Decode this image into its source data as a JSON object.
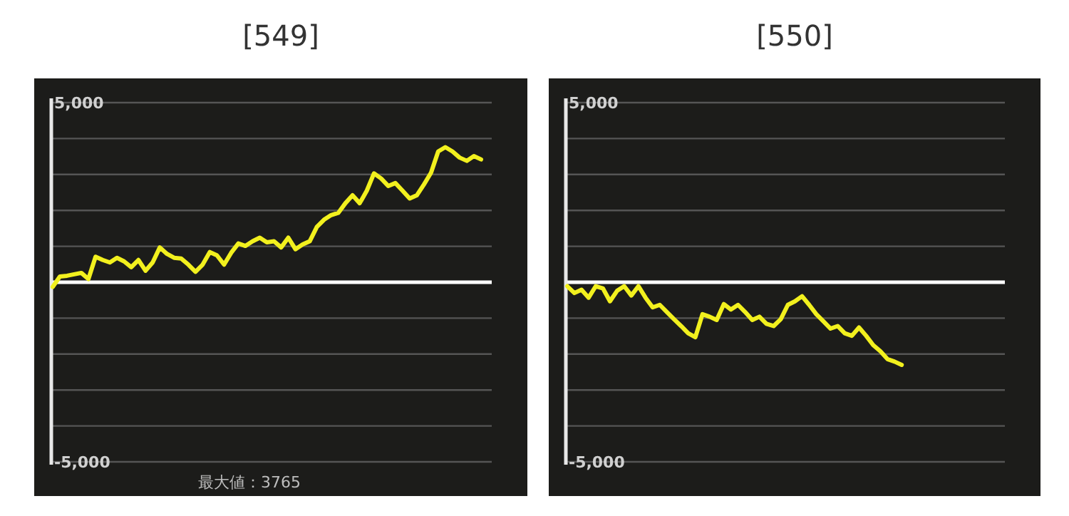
{
  "chart_data": [
    {
      "type": "line",
      "title": "[549]",
      "categories": [
        null,
        null,
        null,
        null,
        null,
        null,
        null,
        null,
        null,
        null,
        null,
        null,
        null,
        null,
        null,
        null,
        null,
        null,
        null,
        null,
        null,
        null,
        null,
        null,
        null,
        null,
        null,
        null,
        null,
        null,
        null,
        null,
        null,
        null,
        null,
        null,
        null,
        null,
        null,
        null,
        null,
        null,
        null,
        null,
        null,
        null,
        null,
        null,
        null,
        null,
        null,
        null,
        null,
        null,
        null,
        null,
        null,
        null,
        null,
        null,
        null,
        null
      ],
      "series": [
        {
          "color": "#f2f01e",
          "values": [
            -130,
            160,
            180,
            220,
            260,
            90,
            710,
            620,
            550,
            680,
            580,
            420,
            620,
            320,
            550,
            970,
            790,
            680,
            660,
            490,
            290,
            490,
            840,
            750,
            490,
            820,
            1080,
            1010,
            1140,
            1240,
            1110,
            1140,
            970,
            1240,
            920,
            1050,
            1140,
            1540,
            1740,
            1870,
            1930,
            2200,
            2420,
            2200,
            2550,
            3030,
            2890,
            2680,
            2760,
            2550,
            2330,
            2420,
            2720,
            3050,
            3640,
            3760,
            3640,
            3470,
            3380,
            3510,
            3420,
            null
          ]
        }
      ],
      "ylim": [
        -5000,
        5000
      ],
      "yticks": [
        {
          "value": -5000,
          "label": "-5,000"
        },
        {
          "value": -4000,
          "label": null
        },
        {
          "value": -3000,
          "label": null
        },
        {
          "value": -2000,
          "label": null
        },
        {
          "value": -1000,
          "label": null
        },
        {
          "value": 0,
          "label": null
        },
        {
          "value": 1000,
          "label": null
        },
        {
          "value": 2000,
          "label": null
        },
        {
          "value": 3000,
          "label": null
        },
        {
          "value": 4000,
          "label": null
        },
        {
          "value": 5000,
          "label": "5,000"
        }
      ],
      "grid": "y",
      "tick_labels": "y",
      "marker": "none",
      "line_style": "solid",
      "ref_lines": [
        {
          "axis": "y",
          "value": 0,
          "color": "#ffffff"
        }
      ],
      "annotations": [
        "最大値：3765"
      ]
    },
    {
      "type": "line",
      "title": "[550]",
      "categories": [
        null,
        null,
        null,
        null,
        null,
        null,
        null,
        null,
        null,
        null,
        null,
        null,
        null,
        null,
        null,
        null,
        null,
        null,
        null,
        null,
        null,
        null,
        null,
        null,
        null,
        null,
        null,
        null,
        null,
        null,
        null,
        null,
        null,
        null,
        null,
        null,
        null,
        null,
        null,
        null,
        null,
        null,
        null,
        null,
        null,
        null,
        null,
        null,
        null,
        null,
        null,
        null,
        null,
        null,
        null,
        null,
        null,
        null,
        null,
        null,
        null,
        null
      ],
      "series": [
        {
          "color": "#f2f01e",
          "values": [
            -110,
            -300,
            -210,
            -430,
            -110,
            -170,
            -530,
            -240,
            -110,
            -370,
            -110,
            -430,
            -700,
            -630,
            -830,
            -1030,
            -1220,
            -1420,
            -1530,
            -890,
            -960,
            -1050,
            -610,
            -760,
            -630,
            -830,
            -1050,
            -960,
            -1160,
            -1220,
            -1030,
            -630,
            -530,
            -390,
            -630,
            -890,
            -1090,
            -1290,
            -1220,
            -1420,
            -1490,
            -1260,
            -1490,
            -1750,
            -1920,
            -2140,
            -2210,
            -2300,
            null,
            null,
            null,
            null,
            null,
            null,
            null,
            null,
            null,
            null,
            null,
            null,
            null,
            null
          ]
        }
      ],
      "ylim": [
        -5000,
        5000
      ],
      "yticks": [
        {
          "value": -5000,
          "label": "-5,000"
        },
        {
          "value": -4000,
          "label": null
        },
        {
          "value": -3000,
          "label": null
        },
        {
          "value": -2000,
          "label": null
        },
        {
          "value": -1000,
          "label": null
        },
        {
          "value": 0,
          "label": null
        },
        {
          "value": 1000,
          "label": null
        },
        {
          "value": 2000,
          "label": null
        },
        {
          "value": 3000,
          "label": null
        },
        {
          "value": 4000,
          "label": null
        },
        {
          "value": 5000,
          "label": "5,000"
        }
      ],
      "grid": "y",
      "tick_labels": "y",
      "marker": "none",
      "line_style": "solid",
      "ref_lines": [
        {
          "axis": "y",
          "value": 0,
          "color": "#ffffff"
        }
      ]
    }
  ]
}
